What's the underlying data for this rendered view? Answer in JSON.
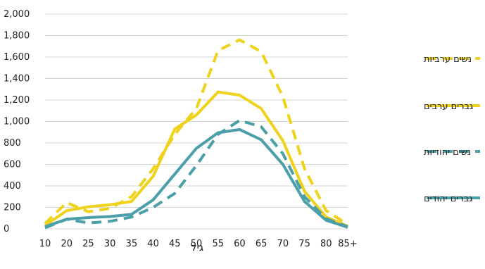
{
  "chart_data": {
    "type": "line",
    "title": "",
    "xlabel": "גיל",
    "ylabel": "",
    "categories": [
      "10",
      "20",
      "25",
      "30",
      "35",
      "40",
      "45",
      "50",
      "55",
      "60",
      "65",
      "70",
      "75",
      "80",
      "85+"
    ],
    "y_ticks": [
      "0",
      "200",
      "400",
      "600",
      "800",
      "1,000",
      "1,200",
      "1,400",
      "1,600",
      "1,800",
      "2,000"
    ],
    "ylim": [
      0,
      2000
    ],
    "grid": "horizontal",
    "legend_position": "right",
    "series": [
      {
        "name": "נשים ערביות",
        "color": "#eed21b",
        "style": "dashed",
        "values": [
          50,
          245,
          160,
          190,
          300,
          560,
          880,
          1120,
          1660,
          1760,
          1650,
          1230,
          560,
          170,
          40
        ]
      },
      {
        "name": "גברים ערבים",
        "color": "#eed21b",
        "style": "solid",
        "values": [
          30,
          170,
          205,
          225,
          255,
          490,
          930,
          1060,
          1275,
          1245,
          1120,
          820,
          350,
          110,
          25
        ]
      },
      {
        "name": "נשים יהודיות",
        "color": "#4a9fa8",
        "style": "dashed",
        "values": [
          10,
          90,
          55,
          70,
          110,
          200,
          330,
          590,
          880,
          1010,
          950,
          700,
          300,
          95,
          20
        ]
      },
      {
        "name": "גברים יהודים",
        "color": "#4a9fa8",
        "style": "solid",
        "values": [
          20,
          90,
          105,
          115,
          135,
          270,
          510,
          750,
          895,
          925,
          830,
          600,
          255,
          80,
          15
        ]
      }
    ]
  }
}
